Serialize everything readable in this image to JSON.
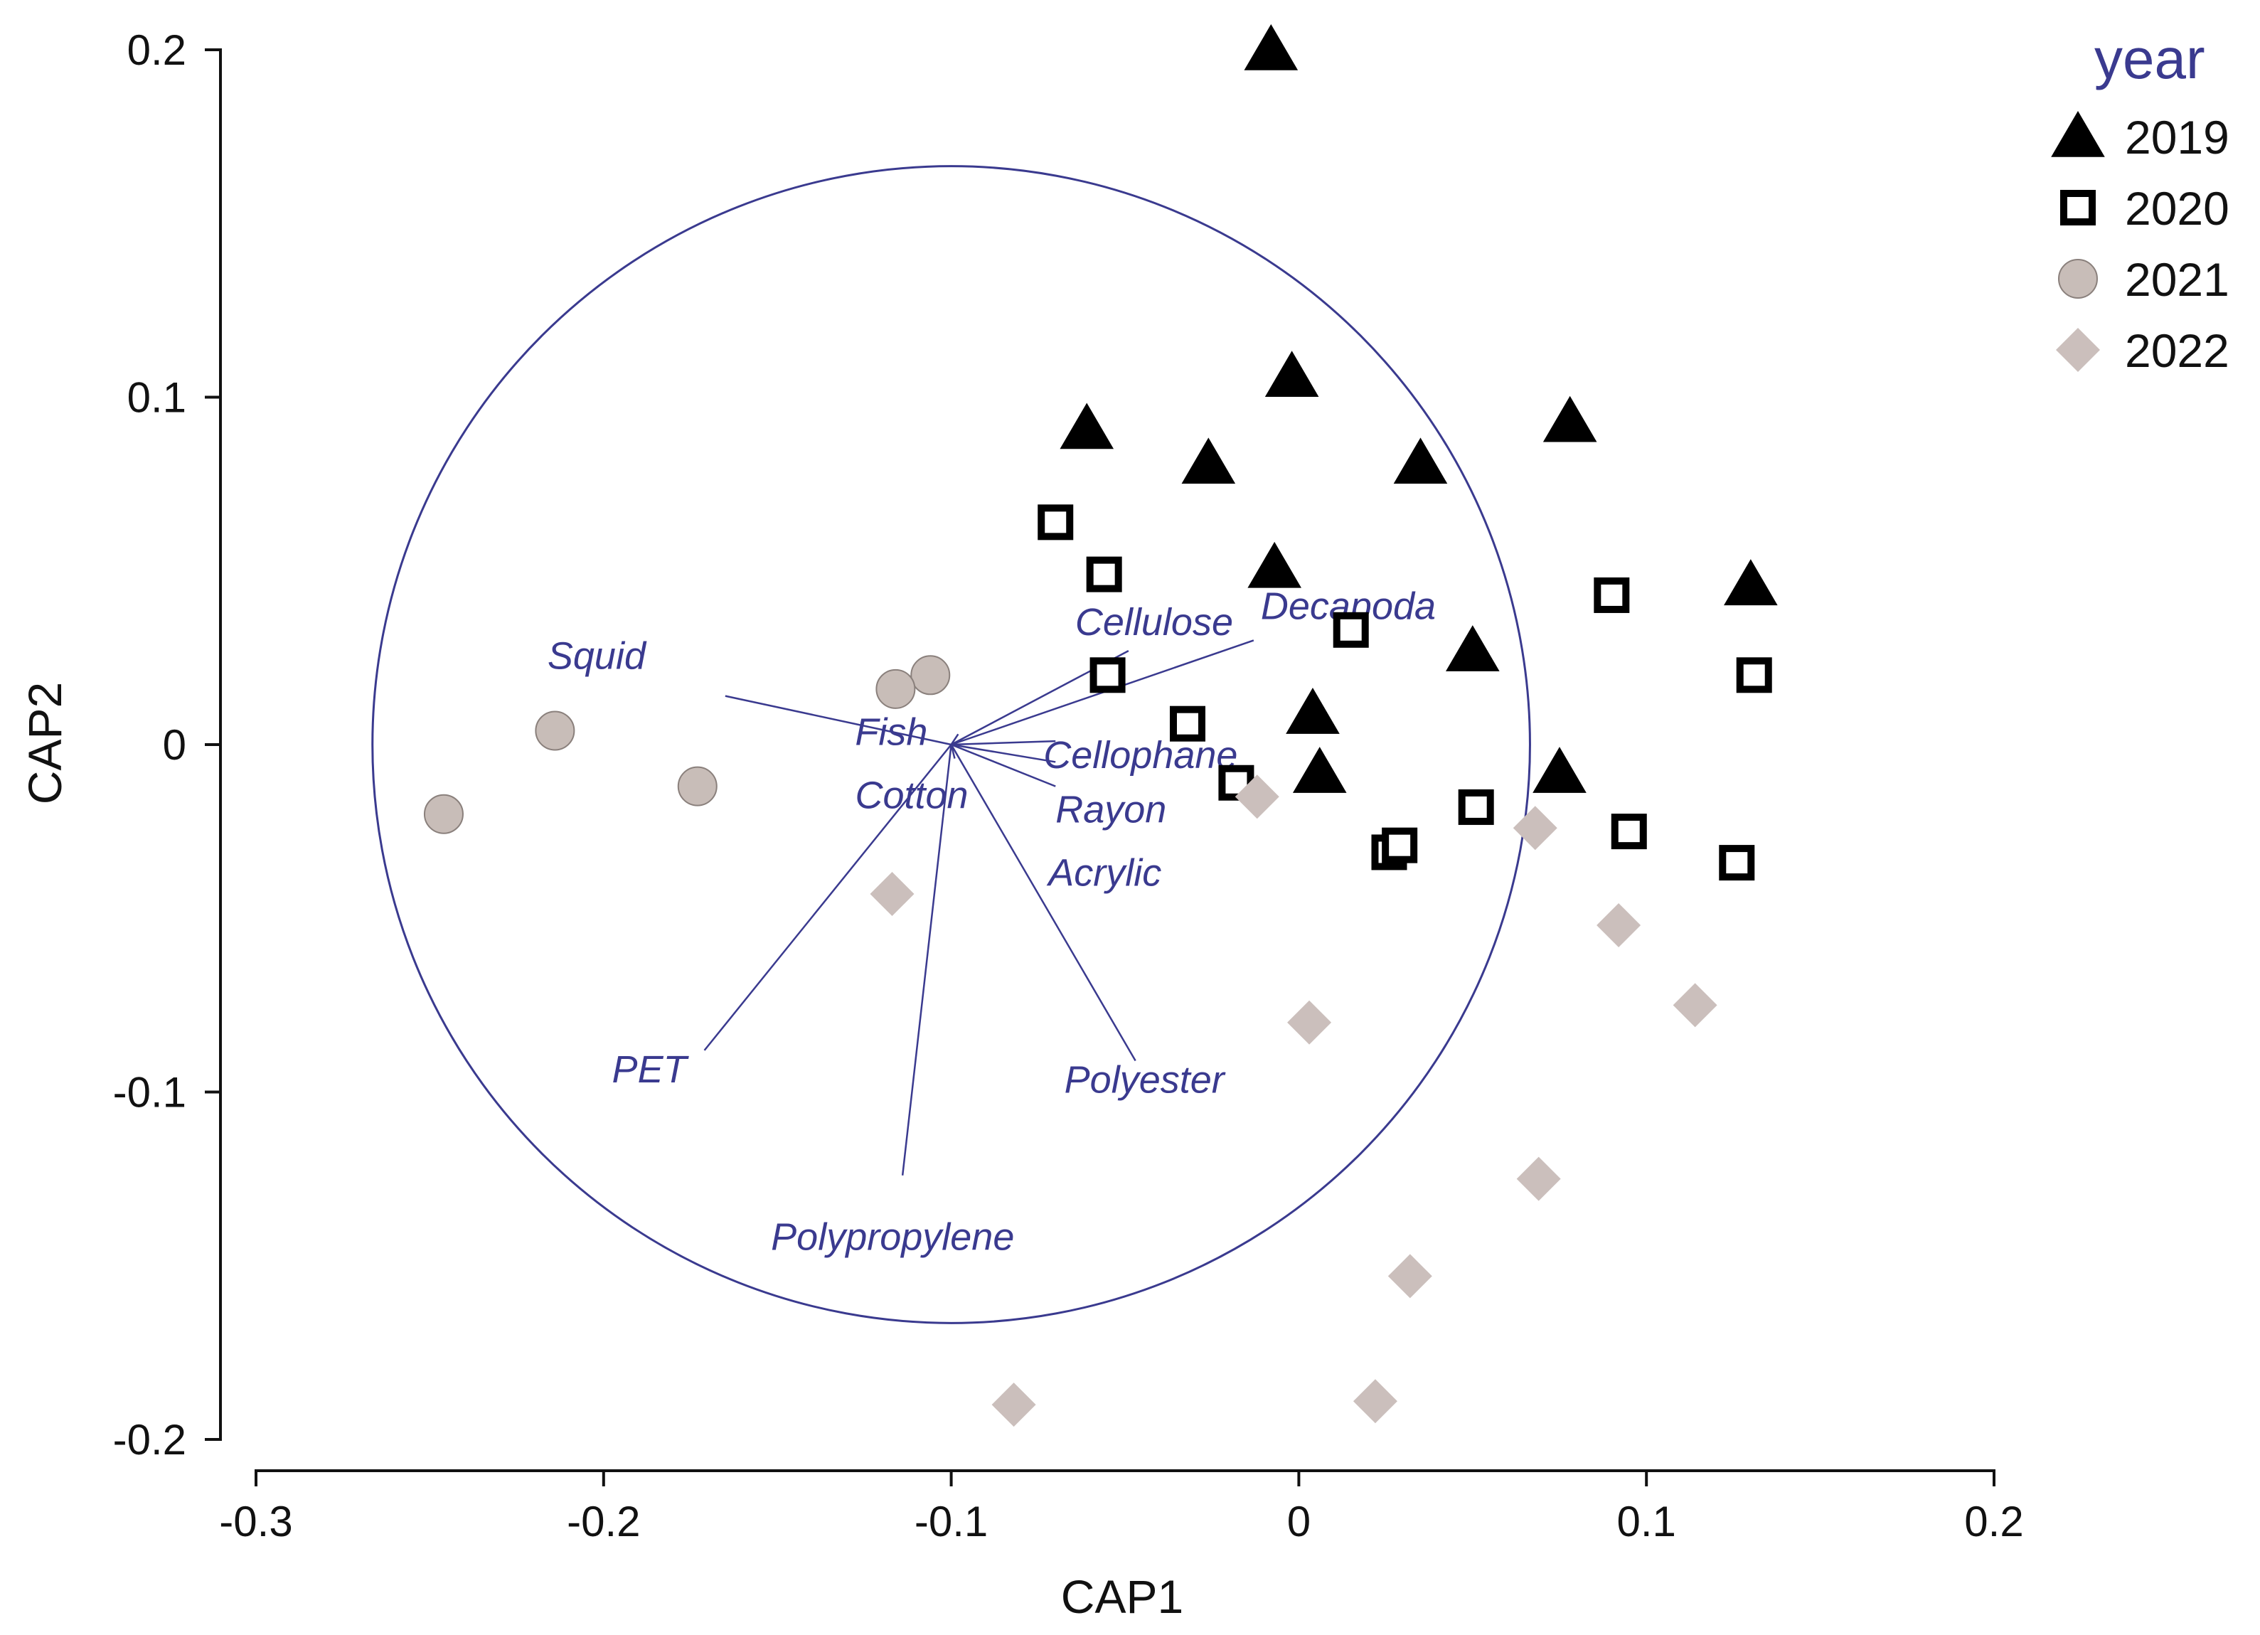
{
  "chart_data": {
    "type": "scatter",
    "xlabel": "CAP1",
    "ylabel": "CAP2",
    "xlim": [
      -0.3,
      0.2
    ],
    "ylim": [
      -0.2,
      0.2
    ],
    "x_ticks": [
      -0.3,
      -0.2,
      -0.1,
      0,
      0.1,
      0.2
    ],
    "x_tick_labels": [
      "-0.3",
      "-0.2",
      "-0.1",
      "0",
      "0.1",
      "0.2"
    ],
    "y_ticks": [
      -0.2,
      -0.1,
      0,
      0.1,
      0.2
    ],
    "y_tick_labels": [
      "-0.2",
      "-0.1",
      "0",
      "0.1",
      "0.2"
    ],
    "legend_title": "year",
    "legend_position": "top-right",
    "colors": {
      "vector": "#3a3a8f",
      "triangle": "#000000",
      "square_stroke": "#000000",
      "circle_fill": "#c8bdb8",
      "diamond_fill": "#cbbfbc",
      "axis": "#111111"
    },
    "correlation_circle": {
      "center": [
        -0.1,
        0
      ],
      "radius": 0.1665
    },
    "vectors": [
      {
        "name": "Squid",
        "end": [
          -0.165,
          0.014
        ]
      },
      {
        "name": "Fish",
        "end": [
          -0.098,
          0.003
        ]
      },
      {
        "name": "Cotton",
        "end": [
          -0.099,
          -0.004
        ]
      },
      {
        "name": "Cellulose",
        "end": [
          -0.049,
          0.027
        ]
      },
      {
        "name": "Decapoda",
        "end": [
          -0.013,
          0.03
        ]
      },
      {
        "name": "Cellophane",
        "end": [
          -0.07,
          0.001
        ]
      },
      {
        "name": "Rayon",
        "end": [
          -0.07,
          -0.005
        ]
      },
      {
        "name": "Acrylic",
        "end": [
          -0.07,
          -0.012
        ]
      },
      {
        "name": "PET",
        "end": [
          -0.171,
          -0.088
        ]
      },
      {
        "name": "Polypropylene",
        "end": [
          -0.114,
          -0.124
        ]
      },
      {
        "name": "Polyester",
        "end": [
          -0.047,
          -0.091
        ]
      }
    ],
    "series": [
      {
        "name": "2019",
        "marker": "triangle",
        "points": [
          [
            -0.008,
            0.2
          ],
          [
            -0.002,
            0.106
          ],
          [
            -0.061,
            0.091
          ],
          [
            -0.026,
            0.081
          ],
          [
            0.035,
            0.081
          ],
          [
            0.078,
            0.093
          ],
          [
            -0.007,
            0.051
          ],
          [
            0.13,
            0.046
          ],
          [
            0.05,
            0.027
          ],
          [
            0.004,
            0.009
          ],
          [
            0.006,
            -0.008
          ],
          [
            0.075,
            -0.008
          ]
        ]
      },
      {
        "name": "2020",
        "marker": "square",
        "points": [
          [
            -0.07,
            0.064
          ],
          [
            -0.056,
            0.049
          ],
          [
            0.015,
            0.033
          ],
          [
            0.09,
            0.043
          ],
          [
            -0.055,
            0.02
          ],
          [
            0.131,
            0.02
          ],
          [
            -0.032,
            0.006
          ],
          [
            -0.018,
            -0.011
          ],
          [
            0.051,
            -0.018
          ],
          [
            0.026,
            -0.031
          ],
          [
            0.029,
            -0.029
          ],
          [
            0.095,
            -0.025
          ],
          [
            0.126,
            -0.034
          ]
        ]
      },
      {
        "name": "2021",
        "marker": "circle",
        "points": [
          [
            -0.106,
            0.02
          ],
          [
            -0.116,
            0.016
          ],
          [
            -0.214,
            0.004
          ],
          [
            -0.173,
            -0.012
          ],
          [
            -0.246,
            -0.02
          ]
        ]
      },
      {
        "name": "2022",
        "marker": "diamond",
        "points": [
          [
            -0.117,
            -0.043
          ],
          [
            -0.012,
            -0.015
          ],
          [
            0.068,
            -0.024
          ],
          [
            0.092,
            -0.052
          ],
          [
            0.114,
            -0.075
          ],
          [
            0.003,
            -0.08
          ],
          [
            0.069,
            -0.125
          ],
          [
            0.032,
            -0.153
          ],
          [
            -0.082,
            -0.19
          ],
          [
            0.022,
            -0.189
          ]
        ]
      }
    ]
  }
}
